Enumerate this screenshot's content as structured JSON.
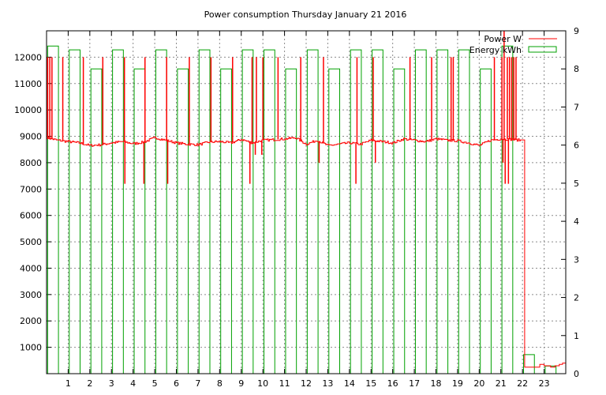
{
  "chart_data": {
    "type": "line",
    "title": "Power consumption Thursday January 21 2016",
    "x_ticks": [
      1,
      2,
      3,
      4,
      5,
      6,
      7,
      8,
      9,
      10,
      11,
      12,
      13,
      14,
      15,
      16,
      17,
      18,
      19,
      20,
      21,
      22,
      23
    ],
    "xlim": [
      0,
      24
    ],
    "ylim_left": [
      0,
      13000
    ],
    "y_left_ticks": [
      1000,
      2000,
      3000,
      4000,
      5000,
      6000,
      7000,
      8000,
      9000,
      10000,
      11000,
      12000
    ],
    "ylim_right": [
      0,
      9
    ],
    "y_right_ticks": [
      0,
      1,
      2,
      3,
      4,
      5,
      6,
      7,
      8,
      9
    ],
    "grid": true,
    "legend_position": "top-right",
    "series": [
      {
        "name": "Power W",
        "axis": "left",
        "color": "#ff0000",
        "base_profile": {
          "hours": [
            0,
            0.5,
            1,
            1.5,
            2,
            2.5,
            3,
            3.5,
            4,
            4.5,
            5,
            5.5,
            6,
            6.5,
            7,
            7.5,
            8,
            8.5,
            9,
            9.5,
            10,
            10.5,
            11,
            11.5,
            12,
            12.5,
            13,
            13.5,
            14,
            14.5,
            15,
            15.5,
            16,
            16.5,
            17,
            17.5,
            18,
            18.5,
            19,
            19.5,
            20,
            20.5,
            21,
            21.5,
            21.9
          ],
          "values": [
            8950,
            8850,
            8800,
            8750,
            8650,
            8680,
            8750,
            8800,
            8720,
            8780,
            8950,
            8850,
            8750,
            8700,
            8680,
            8780,
            8800,
            8750,
            8880,
            8750,
            8850,
            8870,
            8900,
            8950,
            8700,
            8850,
            8650,
            8700,
            8750,
            8700,
            8850,
            8800,
            8750,
            8900,
            8850,
            8800,
            8900,
            8850,
            8830,
            8750,
            8650,
            8850,
            8900,
            8880,
            8850
          ]
        },
        "spikes": [
          {
            "hour": 0.05,
            "value": 12000
          },
          {
            "hour": 0.15,
            "value": 12000
          },
          {
            "hour": 0.25,
            "value": 12000
          },
          {
            "hour": 0.75,
            "value": 12000
          },
          {
            "hour": 1.7,
            "value": 12000
          },
          {
            "hour": 2.6,
            "value": 12000
          },
          {
            "hour": 3.6,
            "value": 12000
          },
          {
            "hour": 3.62,
            "value": 7200
          },
          {
            "hour": 4.5,
            "value": 7200
          },
          {
            "hour": 4.55,
            "value": 12000
          },
          {
            "hour": 5.55,
            "value": 12000
          },
          {
            "hour": 5.6,
            "value": 7200
          },
          {
            "hour": 6.6,
            "value": 12000
          },
          {
            "hour": 7.6,
            "value": 12000
          },
          {
            "hour": 8.6,
            "value": 12000
          },
          {
            "hour": 9.4,
            "value": 7200
          },
          {
            "hour": 9.5,
            "value": 12000
          },
          {
            "hour": 9.65,
            "value": 8300
          },
          {
            "hour": 9.7,
            "value": 12000
          },
          {
            "hour": 9.95,
            "value": 8300
          },
          {
            "hour": 10.0,
            "value": 12000
          },
          {
            "hour": 10.7,
            "value": 12000
          },
          {
            "hour": 11.75,
            "value": 12000
          },
          {
            "hour": 12.6,
            "value": 8000
          },
          {
            "hour": 12.8,
            "value": 12000
          },
          {
            "hour": 14.3,
            "value": 7200
          },
          {
            "hour": 14.35,
            "value": 12000
          },
          {
            "hour": 15.1,
            "value": 12000
          },
          {
            "hour": 15.2,
            "value": 8000
          },
          {
            "hour": 16.8,
            "value": 12000
          },
          {
            "hour": 17.8,
            "value": 12000
          },
          {
            "hour": 18.7,
            "value": 12000
          },
          {
            "hour": 18.8,
            "value": 12000
          },
          {
            "hour": 20.7,
            "value": 12000
          },
          {
            "hour": 21.05,
            "value": 12000
          },
          {
            "hour": 21.1,
            "value": 8000
          },
          {
            "hour": 21.15,
            "value": 13000
          },
          {
            "hour": 21.2,
            "value": 7200
          },
          {
            "hour": 21.3,
            "value": 12000
          },
          {
            "hour": 21.35,
            "value": 7200
          },
          {
            "hour": 21.4,
            "value": 12000
          },
          {
            "hour": 21.5,
            "value": 12000
          },
          {
            "hour": 21.6,
            "value": 12000
          },
          {
            "hour": 21.7,
            "value": 12000
          }
        ],
        "tail": {
          "drop_hour": 22.1,
          "hours": [
            22.1,
            22.6,
            22.8,
            23.0,
            23.3,
            23.5,
            23.7,
            23.85,
            24.0
          ],
          "values": [
            250,
            250,
            350,
            300,
            250,
            300,
            350,
            400,
            350
          ]
        }
      },
      {
        "name": "Energy kWh",
        "axis": "right",
        "color": "#00a000",
        "hours": [
          0,
          1,
          2,
          3,
          4,
          5,
          6,
          7,
          8,
          9,
          10,
          11,
          12,
          13,
          14,
          15,
          16,
          17,
          18,
          19,
          20,
          21,
          22,
          23
        ],
        "values": [
          8.6,
          8.5,
          8.0,
          8.5,
          8.0,
          8.5,
          8.0,
          8.5,
          8.0,
          8.5,
          8.5,
          8.0,
          8.5,
          8.0,
          8.5,
          8.5,
          8.0,
          8.5,
          8.5,
          8.5,
          8.0,
          8.6,
          0.5,
          0.2
        ]
      }
    ]
  }
}
